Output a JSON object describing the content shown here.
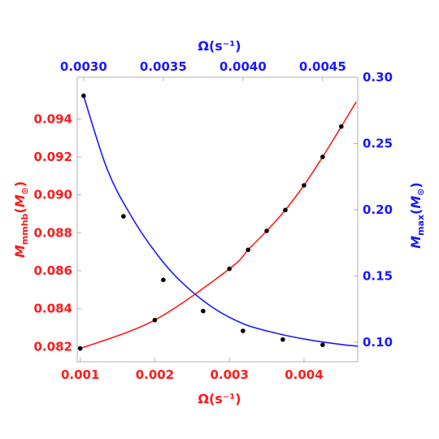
{
  "chart_data": {
    "type": "line",
    "colors": {
      "red": "#ff1a1a",
      "blue": "#1a1aff",
      "points": "#000000",
      "frame": "#b3b3b3"
    },
    "x_bottom": {
      "label": "Ω(s⁻¹)",
      "range": [
        0.00096,
        0.00472
      ],
      "ticks": [
        0.001,
        0.002,
        0.003,
        0.004
      ],
      "tick_labels": [
        "0.001",
        "0.002",
        "0.003",
        "0.004"
      ]
    },
    "x_top": {
      "label": "Ω(s⁻¹)",
      "range": [
        0.00296,
        0.00472
      ],
      "ticks": [
        0.003,
        0.0035,
        0.004,
        0.0045
      ],
      "tick_labels": [
        "0.0030",
        "0.0035",
        "0.0040",
        "0.0045"
      ]
    },
    "y_left": {
      "label": "Mₘₘₕᵦ(M⊙)",
      "label_main": "M",
      "label_sub": "mmhb",
      "label_unit": "M",
      "label_unit_sub": "⊙",
      "range": [
        0.0812,
        0.0962
      ],
      "ticks": [
        0.082,
        0.084,
        0.086,
        0.088,
        0.09,
        0.092,
        0.094
      ],
      "tick_labels": [
        "0.082",
        "0.084",
        "0.086",
        "0.088",
        "0.090",
        "0.092",
        "0.094"
      ]
    },
    "y_right": {
      "label_main": "M",
      "label_sub": "max",
      "label_unit": "M",
      "label_unit_sub": "⊙",
      "range": [
        0.0852,
        0.3
      ],
      "ticks": [
        0.1,
        0.15,
        0.2,
        0.25,
        0.3
      ],
      "tick_labels": [
        "0.10",
        "0.15",
        "0.20",
        "0.25",
        "0.30"
      ]
    },
    "series": [
      {
        "axis": "bottom-left",
        "color": "#ff1a1a",
        "points": [
          {
            "x": 0.001,
            "y": 0.0819
          },
          {
            "x": 0.002,
            "y": 0.0834
          },
          {
            "x": 0.003,
            "y": 0.0861
          },
          {
            "x": 0.00325,
            "y": 0.0871
          },
          {
            "x": 0.0035,
            "y": 0.0881
          },
          {
            "x": 0.00375,
            "y": 0.0892
          },
          {
            "x": 0.004,
            "y": 0.0905
          },
          {
            "x": 0.00425,
            "y": 0.092
          },
          {
            "x": 0.0045,
            "y": 0.0936
          },
          {
            "x": 0.0047,
            "y": 0.0949
          }
        ],
        "markers": [
          {
            "x": 0.001,
            "y": 0.0819
          },
          {
            "x": 0.002,
            "y": 0.0834
          },
          {
            "x": 0.003,
            "y": 0.0861
          },
          {
            "x": 0.00325,
            "y": 0.0871
          },
          {
            "x": 0.0035,
            "y": 0.0881
          },
          {
            "x": 0.00375,
            "y": 0.0892
          },
          {
            "x": 0.004,
            "y": 0.0905
          },
          {
            "x": 0.00425,
            "y": 0.092
          },
          {
            "x": 0.0045,
            "y": 0.0936
          }
        ]
      },
      {
        "axis": "top-right",
        "color": "#1a1aff",
        "points": [
          {
            "x": 0.003,
            "y": 0.286
          },
          {
            "x": 0.00315,
            "y": 0.23
          },
          {
            "x": 0.0033,
            "y": 0.195
          },
          {
            "x": 0.00345,
            "y": 0.168
          },
          {
            "x": 0.0036,
            "y": 0.147
          },
          {
            "x": 0.0038,
            "y": 0.127
          },
          {
            "x": 0.004,
            "y": 0.114
          },
          {
            "x": 0.0042,
            "y": 0.107
          },
          {
            "x": 0.0044,
            "y": 0.102
          },
          {
            "x": 0.0046,
            "y": 0.0985
          },
          {
            "x": 0.00472,
            "y": 0.097
          }
        ],
        "markers": [
          {
            "x": 0.003,
            "y": 0.286
          },
          {
            "x": 0.00325,
            "y": 0.195
          },
          {
            "x": 0.0035,
            "y": 0.147
          },
          {
            "x": 0.00375,
            "y": 0.1235
          },
          {
            "x": 0.004,
            "y": 0.1085
          },
          {
            "x": 0.00425,
            "y": 0.102
          },
          {
            "x": 0.0045,
            "y": 0.098
          }
        ]
      }
    ]
  }
}
